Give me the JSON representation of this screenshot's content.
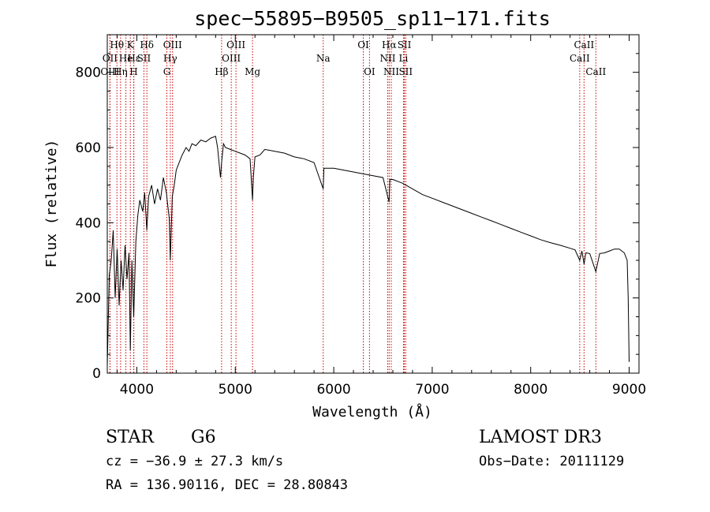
{
  "chart_data": {
    "type": "line",
    "title": "spec−55895−B9505_sp11−171.fits",
    "xlabel": "Wavelength (Å)",
    "ylabel": "Flux (relative)",
    "xlim": [
      3700,
      9100
    ],
    "ylim": [
      0,
      900
    ],
    "xticks": [
      4000,
      5000,
      6000,
      7000,
      8000,
      9000
    ],
    "yticks": [
      0,
      200,
      400,
      600,
      800
    ],
    "grid": false,
    "series": [
      {
        "name": "flux",
        "x": [
          3700,
          3720,
          3740,
          3760,
          3780,
          3800,
          3820,
          3840,
          3860,
          3880,
          3900,
          3920,
          3934,
          3950,
          3968,
          3990,
          4010,
          4030,
          4060,
          4080,
          4101,
          4120,
          4150,
          4180,
          4210,
          4240,
          4270,
          4300,
          4330,
          4340,
          4360,
          4380,
          4400,
          4430,
          4460,
          4500,
          4530,
          4560,
          4600,
          4650,
          4700,
          4750,
          4800,
          4820,
          4850,
          4861,
          4880,
          4900,
          4950,
          5000,
          5050,
          5100,
          5150,
          5175,
          5183,
          5200,
          5250,
          5300,
          5400,
          5500,
          5600,
          5700,
          5800,
          5893,
          5900,
          6000,
          6100,
          6200,
          6300,
          6400,
          6500,
          6562,
          6570,
          6600,
          6700,
          6800,
          6900,
          7000,
          7100,
          7200,
          7300,
          7400,
          7500,
          7600,
          7700,
          7800,
          7900,
          8000,
          8100,
          8200,
          8300,
          8400,
          8450,
          8498,
          8520,
          8542,
          8560,
          8600,
          8662,
          8700,
          8750,
          8800,
          8850,
          8900,
          8950,
          8980,
          8990,
          9000
        ],
        "y": [
          20,
          260,
          300,
          380,
          200,
          330,
          180,
          300,
          220,
          340,
          250,
          320,
          60,
          300,
          150,
          350,
          420,
          460,
          430,
          480,
          380,
          470,
          500,
          450,
          490,
          460,
          520,
          480,
          410,
          300,
          470,
          500,
          540,
          560,
          580,
          600,
          590,
          610,
          605,
          620,
          615,
          625,
          630,
          600,
          520,
          560,
          610,
          600,
          595,
          590,
          585,
          580,
          570,
          460,
          520,
          575,
          580,
          595,
          590,
          585,
          575,
          570,
          560,
          490,
          545,
          545,
          540,
          535,
          530,
          525,
          520,
          455,
          515,
          515,
          505,
          490,
          475,
          465,
          455,
          445,
          435,
          425,
          415,
          405,
          395,
          385,
          375,
          365,
          355,
          347,
          340,
          332,
          328,
          300,
          325,
          290,
          320,
          318,
          270,
          318,
          320,
          325,
          330,
          330,
          320,
          300,
          200,
          30
        ]
      }
    ],
    "spectral_lines": [
      {
        "label": "Hθ",
        "x": 3798,
        "row": 1
      },
      {
        "label": "OII",
        "x": 3727,
        "row": 2
      },
      {
        "label": "OIII",
        "x": 3727,
        "row": 3
      },
      {
        "label": "He",
        "x": 3889,
        "row": 2
      },
      {
        "label": "Hη",
        "x": 3835,
        "row": 3
      },
      {
        "label": "K",
        "x": 3934,
        "row": 1
      },
      {
        "label": "Hε",
        "x": 3970,
        "row": 2
      },
      {
        "label": "H",
        "x": 3968,
        "row": 3
      },
      {
        "label": "SII",
        "x": 4072,
        "row": 2
      },
      {
        "label": "Hδ",
        "x": 4102,
        "row": 1
      },
      {
        "label": "OIII",
        "x": 4363,
        "row": 1
      },
      {
        "label": "Hγ",
        "x": 4340,
        "row": 2
      },
      {
        "label": "G",
        "x": 4305,
        "row": 3
      },
      {
        "label": "Hβ",
        "x": 4861,
        "row": 3
      },
      {
        "label": "OIII",
        "x": 4959,
        "row": 2
      },
      {
        "label": "OIII",
        "x": 5007,
        "row": 1
      },
      {
        "label": "Mg",
        "x": 5175,
        "row": 3
      },
      {
        "label": "Na",
        "x": 5893,
        "row": 2
      },
      {
        "label": "OI",
        "x": 6300,
        "row": 1
      },
      {
        "label": "OI",
        "x": 6363,
        "row": 3
      },
      {
        "label": "Hα",
        "x": 6563,
        "row": 1
      },
      {
        "label": "NII",
        "x": 6548,
        "row": 2
      },
      {
        "label": "NII",
        "x": 6584,
        "row": 3
      },
      {
        "label": "SII",
        "x": 6717,
        "row": 1
      },
      {
        "label": "Li",
        "x": 6708,
        "row": 2
      },
      {
        "label": "SII",
        "x": 6731,
        "row": 3
      },
      {
        "label": "CaII",
        "x": 8542,
        "row": 1
      },
      {
        "label": "CaII",
        "x": 8498,
        "row": 2
      },
      {
        "label": "CaII",
        "x": 8662,
        "row": 3
      }
    ]
  },
  "info": {
    "object_class": "STAR",
    "subclass": "G6",
    "survey": "LAMOST DR3",
    "redshift": "cz = −36.9 ± 27.3 km/s",
    "obs_date": "Obs−Date: 20111129",
    "coords": "RA = 136.90116, DEC =  28.80843"
  },
  "colors": {
    "spectrum": "#000000",
    "marker_lines": "#cc0000",
    "axes": "#000000",
    "background": "#ffffff"
  }
}
